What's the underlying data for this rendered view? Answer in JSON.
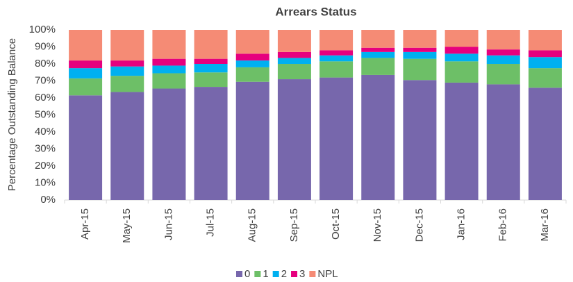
{
  "chart_data": {
    "type": "stacked_bar",
    "title": "Arrears Status",
    "y_label": "Percentage Outstanding Balance",
    "categories": [
      "Apr-15",
      "May-15",
      "Jun-15",
      "Jul-15",
      "Aug-15",
      "Sep-15",
      "Oct-15",
      "Nov-15",
      "Dec-15",
      "Jan-16",
      "Feb-16",
      "Mar-16"
    ],
    "series": [
      {
        "name": "0",
        "color": "#7767ac",
        "values": [
          61.5,
          63.5,
          65.5,
          66.5,
          69.5,
          71,
          72,
          73.5,
          70.5,
          69,
          68,
          66
        ]
      },
      {
        "name": "1",
        "color": "#6dbf67",
        "values": [
          10,
          9.5,
          9,
          8.5,
          8.5,
          9,
          9.5,
          10,
          12.5,
          12.5,
          12,
          11.5
        ]
      },
      {
        "name": "2",
        "color": "#00b0f0",
        "values": [
          6,
          5.5,
          4.5,
          5,
          4,
          3.5,
          3.5,
          3.5,
          4,
          4.5,
          5,
          6.5
        ]
      },
      {
        "name": "3",
        "color": "#e6007e",
        "values": [
          4.5,
          3.5,
          4,
          3,
          4,
          3.5,
          3,
          2.5,
          2.5,
          4,
          3.5,
          4
        ]
      },
      {
        "name": "NPL",
        "color": "#f58b75",
        "values": [
          18,
          18,
          17,
          17,
          14,
          13,
          12,
          10.5,
          10.5,
          10,
          11.5,
          12
        ]
      }
    ],
    "ylim": [
      0,
      100
    ],
    "yticks": [
      {
        "value": 0,
        "label": "0%"
      },
      {
        "value": 10,
        "label": "10%"
      },
      {
        "value": 20,
        "label": "20%"
      },
      {
        "value": 30,
        "label": "30%"
      },
      {
        "value": 40,
        "label": "40%"
      },
      {
        "value": 50,
        "label": "50%"
      },
      {
        "value": 60,
        "label": "60%"
      },
      {
        "value": 70,
        "label": "70%"
      },
      {
        "value": 80,
        "label": "80%"
      },
      {
        "value": 90,
        "label": "90%"
      },
      {
        "value": 100,
        "label": "100%"
      }
    ],
    "legend": "bottom"
  }
}
